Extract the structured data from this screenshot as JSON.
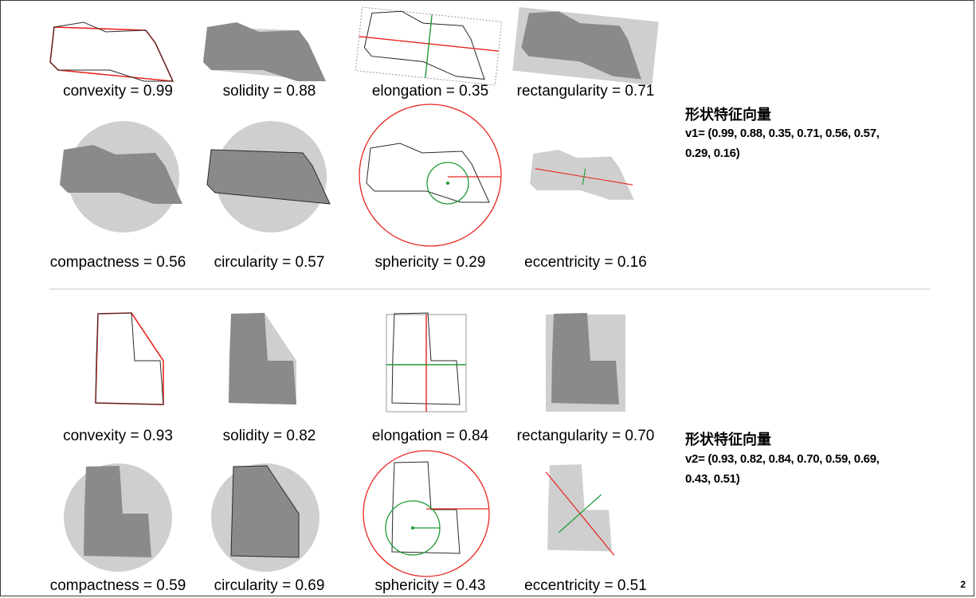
{
  "page_number": "2",
  "sections": [
    {
      "labels": [
        "convexity = 0.99",
        "solidity = 0.88",
        "elongation = 0.35",
        "rectangularity = 0.71",
        "compactness = 0.56",
        "circularity = 0.57",
        "sphericity = 0.29",
        "eccentricity = 0.16"
      ],
      "vector_heading": "形状特征向量",
      "vector_line1": "v1= (0.99, 0.88, 0.35, 0.71, 0.56, 0.57,",
      "vector_line2": "0.29, 0.16)"
    },
    {
      "labels": [
        "convexity = 0.93",
        "solidity = 0.82",
        "elongation = 0.84",
        "rectangularity = 0.70",
        "compactness = 0.59",
        "circularity = 0.69",
        "sphericity = 0.43",
        "eccentricity = 0.51"
      ],
      "vector_heading": "形状特征向量",
      "vector_line1": "v2= (0.93, 0.82, 0.84, 0.70, 0.59, 0.69,",
      "vector_line2": "0.43, 0.51)"
    }
  ],
  "colors": {
    "shape_dark": "#8a8a8a",
    "shape_light": "#cfcfcf",
    "accent_red": "#e8261f",
    "accent_green": "#1f9a35",
    "outline": "#2a2a2a",
    "divider": "#c8c8c8"
  }
}
